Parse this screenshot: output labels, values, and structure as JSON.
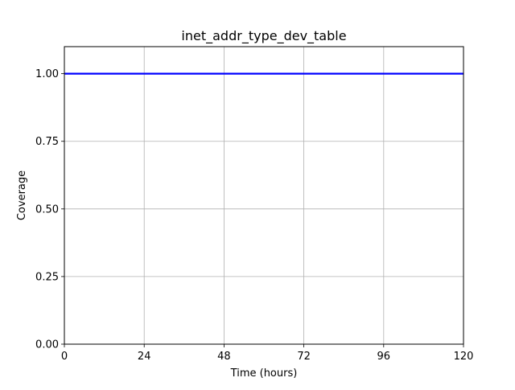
{
  "chart_data": {
    "type": "line",
    "title": "inet_addr_type_dev_table",
    "xlabel": "Time (hours)",
    "ylabel": "Coverage",
    "xlim": [
      0,
      120
    ],
    "ylim": [
      0,
      1.1
    ],
    "xticks": [
      0,
      24,
      48,
      72,
      96,
      120
    ],
    "xtick_labels": [
      "0",
      "24",
      "48",
      "72",
      "96",
      "120"
    ],
    "yticks": [
      0,
      0.25,
      0.5,
      0.75,
      1.0
    ],
    "ytick_labels": [
      "0.00",
      "0.25",
      "0.50",
      "0.75",
      "1.00"
    ],
    "grid": true,
    "legend": false,
    "series": [
      {
        "color": "#0000ff",
        "x": [
          0,
          120
        ],
        "y": [
          1.0,
          1.0
        ]
      }
    ]
  }
}
